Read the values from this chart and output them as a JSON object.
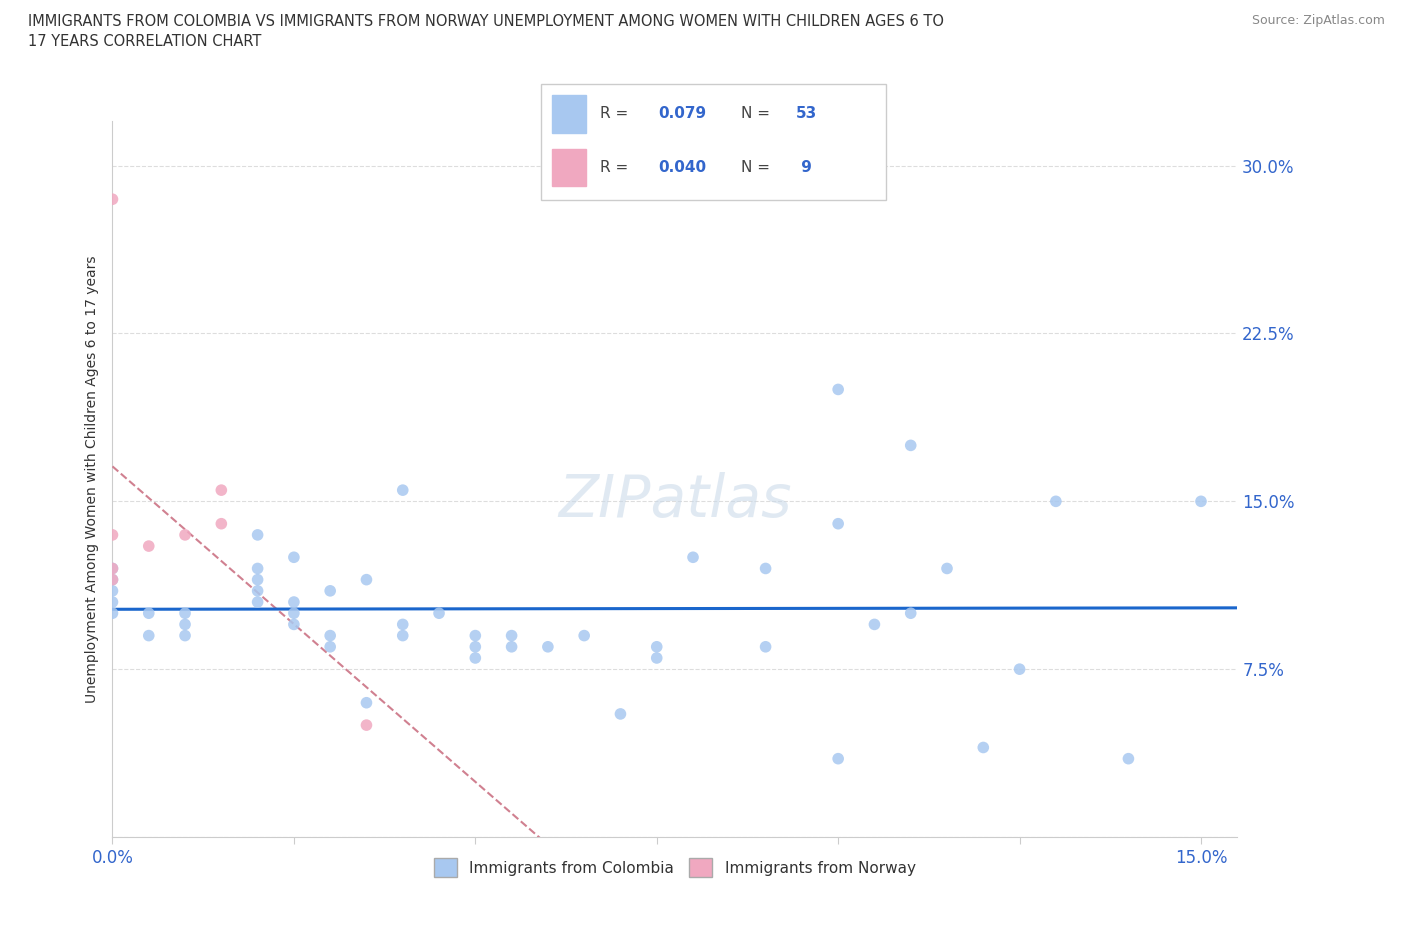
{
  "title_line1": "IMMIGRANTS FROM COLOMBIA VS IMMIGRANTS FROM NORWAY UNEMPLOYMENT AMONG WOMEN WITH CHILDREN AGES 6 TO",
  "title_line2": "17 YEARS CORRELATION CHART",
  "source": "Source: ZipAtlas.com",
  "ylabel": "Unemployment Among Women with Children Ages 6 to 17 years",
  "xlim": [
    0.0,
    0.155
  ],
  "ylim": [
    0.0,
    0.32
  ],
  "xticks": [
    0.0,
    0.025,
    0.05,
    0.075,
    0.1,
    0.125,
    0.15
  ],
  "yticks": [
    0.0,
    0.075,
    0.15,
    0.225,
    0.3
  ],
  "xtick_labels": [
    "0.0%",
    "",
    "",
    "",
    "",
    "",
    "15.0%"
  ],
  "ytick_labels": [
    "",
    "7.5%",
    "15.0%",
    "22.5%",
    "30.0%"
  ],
  "colombia_R": 0.079,
  "colombia_N": 53,
  "norway_R": 0.04,
  "norway_N": 9,
  "colombia_color": "#a8c8f0",
  "norway_color": "#f0a8c0",
  "colombia_line_color": "#1a66cc",
  "norway_line_color": "#d08090",
  "watermark": "ZIPatlas",
  "colombia_x": [
    0.0,
    0.0,
    0.0,
    0.0,
    0.0,
    0.005,
    0.005,
    0.01,
    0.01,
    0.01,
    0.02,
    0.02,
    0.02,
    0.02,
    0.02,
    0.025,
    0.025,
    0.025,
    0.025,
    0.03,
    0.03,
    0.03,
    0.035,
    0.035,
    0.04,
    0.04,
    0.04,
    0.045,
    0.05,
    0.05,
    0.05,
    0.055,
    0.055,
    0.06,
    0.065,
    0.07,
    0.075,
    0.075,
    0.08,
    0.09,
    0.09,
    0.1,
    0.1,
    0.1,
    0.105,
    0.11,
    0.11,
    0.115,
    0.12,
    0.125,
    0.13,
    0.14,
    0.15
  ],
  "colombia_y": [
    0.1,
    0.105,
    0.11,
    0.115,
    0.12,
    0.09,
    0.1,
    0.09,
    0.095,
    0.1,
    0.105,
    0.11,
    0.115,
    0.12,
    0.135,
    0.095,
    0.1,
    0.105,
    0.125,
    0.085,
    0.09,
    0.11,
    0.06,
    0.115,
    0.09,
    0.095,
    0.155,
    0.1,
    0.08,
    0.085,
    0.09,
    0.085,
    0.09,
    0.085,
    0.09,
    0.055,
    0.08,
    0.085,
    0.125,
    0.085,
    0.12,
    0.035,
    0.14,
    0.2,
    0.095,
    0.1,
    0.175,
    0.12,
    0.04,
    0.075,
    0.15,
    0.035,
    0.15
  ],
  "norway_x": [
    0.0,
    0.0,
    0.0,
    0.0,
    0.005,
    0.01,
    0.015,
    0.015,
    0.035
  ],
  "norway_y": [
    0.115,
    0.12,
    0.135,
    0.285,
    0.13,
    0.135,
    0.14,
    0.155,
    0.05
  ]
}
